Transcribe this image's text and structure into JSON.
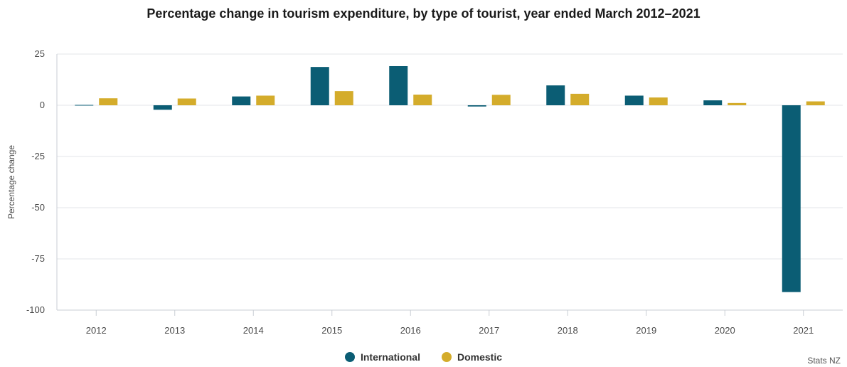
{
  "chart_data": {
    "type": "bar",
    "title": "Percentage change in tourism expenditure, by type of tourist, year ended March 2012–2021",
    "xlabel": "",
    "ylabel": "Percentage change",
    "ylim": [
      -100,
      25
    ],
    "yticks": [
      25,
      0,
      -25,
      -50,
      -75,
      -100
    ],
    "grid": true,
    "legend_position": "bottom",
    "categories": [
      "2012",
      "2013",
      "2014",
      "2015",
      "2016",
      "2017",
      "2018",
      "2019",
      "2020",
      "2021"
    ],
    "series": [
      {
        "name": "International",
        "color": "#0b5d74",
        "values": [
          0,
          -2.2,
          4.3,
          18.7,
          19.1,
          -0.6,
          9.7,
          4.7,
          2.4,
          -91.2
        ]
      },
      {
        "name": "Domestic",
        "color": "#d4ac2b",
        "values": [
          3.4,
          3.3,
          4.7,
          6.9,
          5.2,
          5.1,
          5.6,
          3.8,
          1.1,
          1.9
        ]
      }
    ],
    "credit": "Stats NZ"
  }
}
